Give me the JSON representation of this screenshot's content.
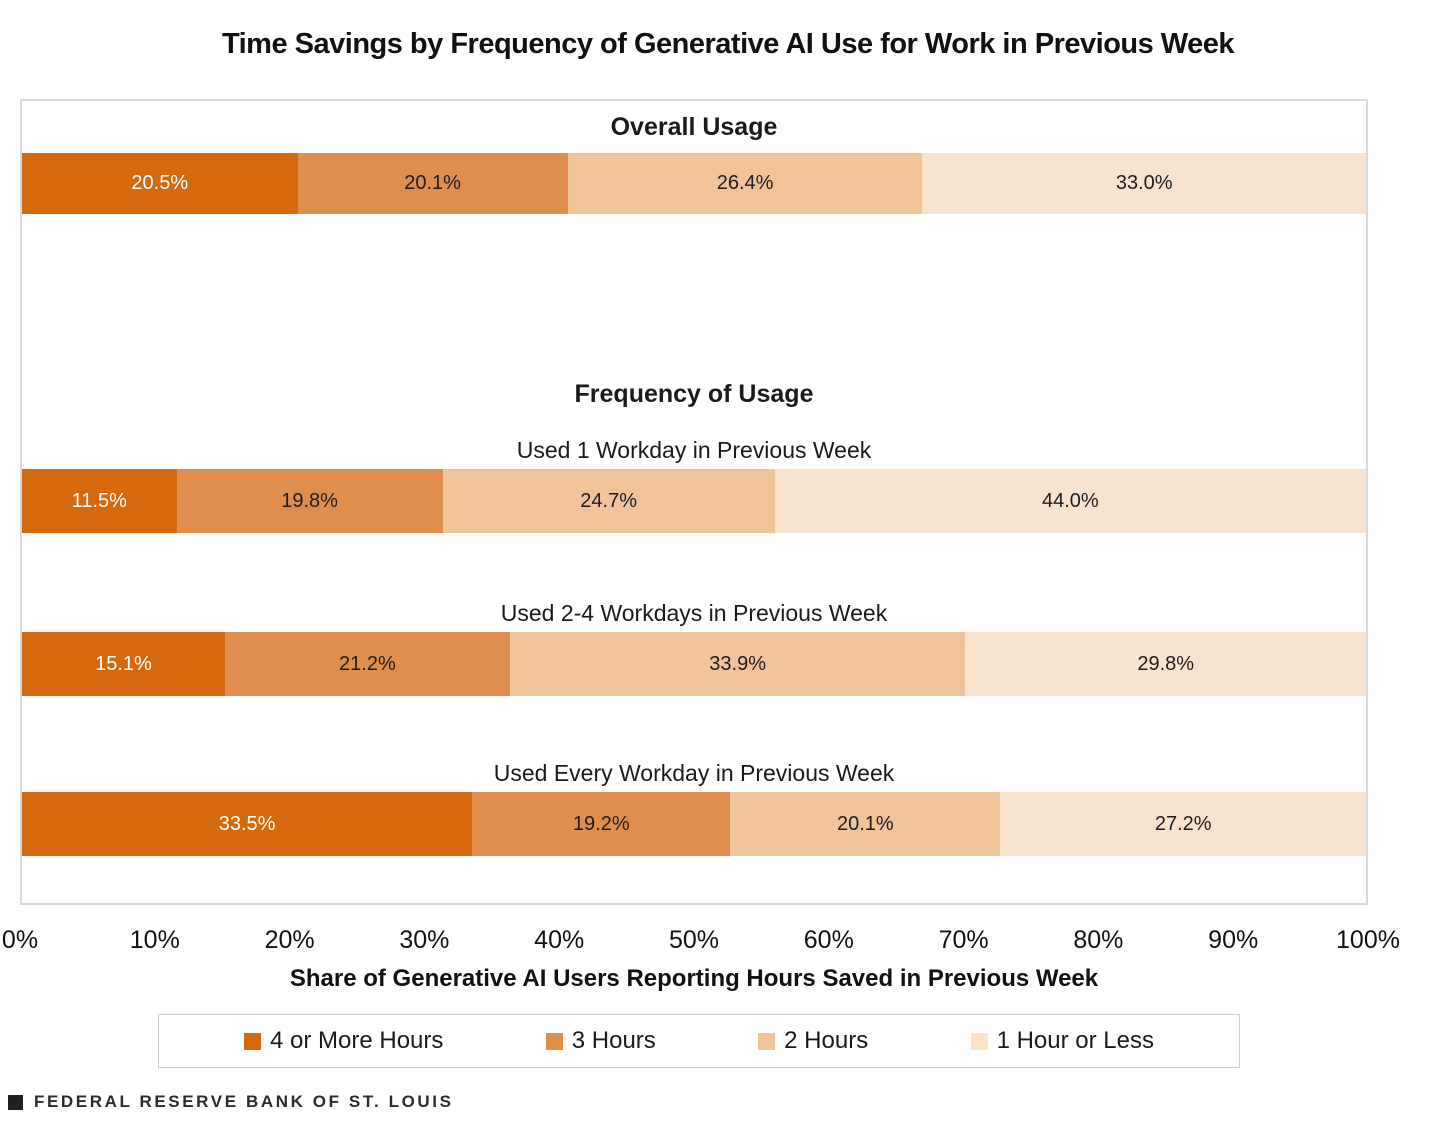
{
  "title": "Time Savings by Frequency of Generative AI Use for Work in Previous Week",
  "footer": {
    "brand": "FEDERAL RESERVE BANK OF ST. LOUIS"
  },
  "chart_data": {
    "type": "bar",
    "orientation": "horizontal-stacked",
    "title": "Time Savings by Frequency of Generative AI Use for Work in Previous Week",
    "xlabel": "Share of Generative AI Users Reporting Hours Saved in Previous Week",
    "xlim": [
      0,
      100
    ],
    "x_ticks": [
      "0%",
      "10%",
      "20%",
      "30%",
      "40%",
      "50%",
      "60%",
      "70%",
      "80%",
      "90%",
      "100%"
    ],
    "grid": false,
    "legend_position": "bottom",
    "section_headers": {
      "overall": "Overall Usage",
      "frequency": "Frequency of Usage"
    },
    "legend": [
      {
        "label": "4 or More Hours",
        "color": "#d4690f"
      },
      {
        "label": "3 Hours",
        "color": "#e08e4e"
      },
      {
        "label": "2 Hours",
        "color": "#f0c49a"
      },
      {
        "label": "1 Hour or Less",
        "color": "#f9e3ce"
      }
    ],
    "value_label_colors": [
      "#ffffff",
      "#1d1d1d",
      "#1d1d1d",
      "#1d1d1d"
    ],
    "bars": [
      {
        "label": "Overall Usage",
        "values": [
          20.5,
          20.1,
          26.4,
          33.0
        ],
        "display": [
          "20.5%",
          "20.1%",
          "26.4%",
          "33.0%"
        ]
      },
      {
        "label": "Used 1 Workday in Previous Week",
        "values": [
          11.5,
          19.8,
          24.7,
          44.0
        ],
        "display": [
          "11.5%",
          "19.8%",
          "24.7%",
          "44.0%"
        ]
      },
      {
        "label": "Used 2-4 Workdays in Previous Week",
        "values": [
          15.1,
          21.2,
          33.9,
          29.8
        ],
        "display": [
          "15.1%",
          "21.2%",
          "33.9%",
          "29.8%"
        ]
      },
      {
        "label": "Used Every Workday in Previous Week",
        "values": [
          33.5,
          19.2,
          20.1,
          27.2
        ],
        "display": [
          "33.5%",
          "19.2%",
          "20.1%",
          "27.2%"
        ]
      }
    ]
  }
}
